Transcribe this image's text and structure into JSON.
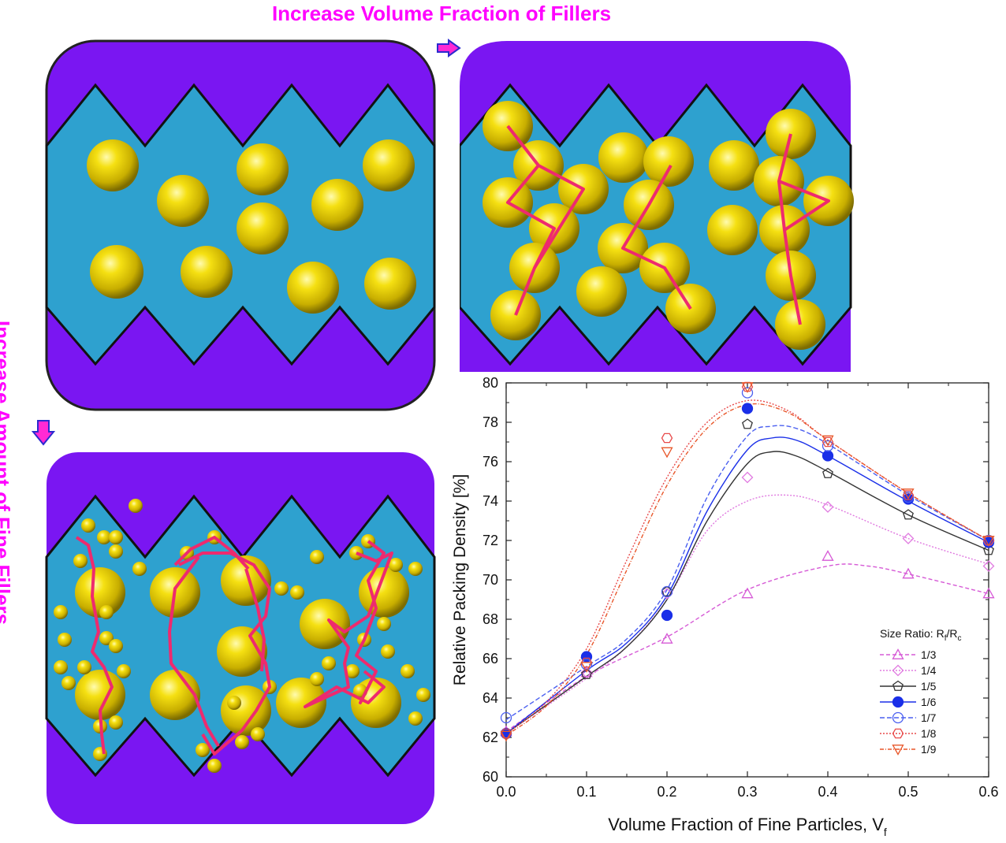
{
  "labels": {
    "top": "Increase Volume Fraction of Fillers",
    "side": "Increase Amount of Fine Fillers"
  },
  "colors": {
    "magenta": "#ff00ff",
    "frame": "#7a16f2",
    "matrix": "#2ea1cf",
    "particle": "#e6d20a",
    "path": "#ee2a6e"
  },
  "chart_data": {
    "type": "line",
    "title": "",
    "xlabel": "Volume Fraction of Fine Particles, V",
    "xlabel_sub": "f",
    "ylabel": "Relative Packing Density [%]",
    "xlim": [
      0.0,
      0.6
    ],
    "ylim": [
      60,
      80
    ],
    "xticks": [
      0.0,
      0.1,
      0.2,
      0.3,
      0.4,
      0.5,
      0.6
    ],
    "xtick_labels": [
      "0.0",
      "0.1",
      "0.2",
      "0.3",
      "0.4",
      "0.5",
      "0.6"
    ],
    "yticks": [
      60,
      62,
      64,
      66,
      68,
      70,
      72,
      74,
      76,
      78,
      80
    ],
    "ytick_labels": [
      "60",
      "62",
      "64",
      "66",
      "68",
      "70",
      "72",
      "74",
      "76",
      "78",
      "80"
    ],
    "legend_title": "Size Ratio: R",
    "legend_title_sub1": "f",
    "legend_title_mid": "/R",
    "legend_title_sub2": "c",
    "legend_position": "bottom-right",
    "x": [
      0.0,
      0.1,
      0.2,
      0.3,
      0.4,
      0.5,
      0.6
    ],
    "series": [
      {
        "name": "1/3",
        "values": [
          62.3,
          65.3,
          67.0,
          69.3,
          71.2,
          70.3,
          69.3
        ],
        "color": "#d65ad6",
        "marker": "triangle-up",
        "filled": false,
        "dash": "5,3",
        "fit": [
          [
            0.0,
            62.3
          ],
          [
            0.1,
            65.1
          ],
          [
            0.2,
            67.1
          ],
          [
            0.3,
            69.5
          ],
          [
            0.4,
            70.7
          ],
          [
            0.45,
            70.7
          ],
          [
            0.5,
            70.3
          ],
          [
            0.6,
            69.3
          ]
        ]
      },
      {
        "name": "1/4",
        "values": [
          62.2,
          65.3,
          69.3,
          75.2,
          73.7,
          72.1,
          70.7
        ],
        "color": "#e07ae0",
        "marker": "diamond",
        "filled": false,
        "dash": "2,2",
        "fit": [
          [
            0.0,
            62.2
          ],
          [
            0.1,
            65.0
          ],
          [
            0.15,
            66.6
          ],
          [
            0.2,
            69.0
          ],
          [
            0.25,
            72.5
          ],
          [
            0.3,
            74.0
          ],
          [
            0.35,
            74.3
          ],
          [
            0.4,
            73.8
          ],
          [
            0.5,
            72.1
          ],
          [
            0.6,
            70.8
          ]
        ]
      },
      {
        "name": "1/5",
        "values": [
          62.2,
          65.2,
          69.4,
          77.9,
          75.4,
          73.3,
          71.5
        ],
        "color": "#333333",
        "marker": "pentagon",
        "filled": false,
        "dash": "",
        "fit": [
          [
            0.0,
            62.2
          ],
          [
            0.1,
            65.1
          ],
          [
            0.15,
            66.6
          ],
          [
            0.2,
            69.0
          ],
          [
            0.25,
            73.0
          ],
          [
            0.3,
            75.9
          ],
          [
            0.33,
            76.5
          ],
          [
            0.36,
            76.3
          ],
          [
            0.4,
            75.5
          ],
          [
            0.5,
            73.3
          ],
          [
            0.6,
            71.5
          ]
        ]
      },
      {
        "name": "1/6",
        "values": [
          62.2,
          66.1,
          68.2,
          78.7,
          76.3,
          74.1,
          71.9
        ],
        "color": "#1a2fe8",
        "marker": "circle",
        "filled": true,
        "dash": "",
        "fit": [
          [
            0.0,
            62.2
          ],
          [
            0.1,
            65.4
          ],
          [
            0.15,
            66.8
          ],
          [
            0.2,
            69.2
          ],
          [
            0.25,
            73.5
          ],
          [
            0.3,
            76.6
          ],
          [
            0.33,
            77.2
          ],
          [
            0.36,
            77.1
          ],
          [
            0.4,
            76.3
          ],
          [
            0.5,
            74.0
          ],
          [
            0.6,
            71.9
          ]
        ]
      },
      {
        "name": "1/7",
        "values": [
          63.0,
          65.7,
          69.4,
          79.5,
          76.8,
          74.2,
          72.0
        ],
        "color": "#4a5ff0",
        "marker": "circle",
        "filled": false,
        "dash": "6,3",
        "fit": [
          [
            0.0,
            62.9
          ],
          [
            0.1,
            65.6
          ],
          [
            0.15,
            67.0
          ],
          [
            0.2,
            69.5
          ],
          [
            0.25,
            74.2
          ],
          [
            0.3,
            77.3
          ],
          [
            0.33,
            77.8
          ],
          [
            0.36,
            77.7
          ],
          [
            0.4,
            76.9
          ],
          [
            0.5,
            74.3
          ],
          [
            0.6,
            72.0
          ]
        ]
      },
      {
        "name": "1/8",
        "values": [
          62.2,
          65.8,
          77.2,
          79.8,
          77.0,
          74.3,
          72.0
        ],
        "color": "#e84a4a",
        "marker": "hexagon",
        "filled": false,
        "dash": "2,2",
        "fit": [
          [
            0.0,
            62.2
          ],
          [
            0.05,
            63.8
          ],
          [
            0.1,
            66.5
          ],
          [
            0.15,
            71.0
          ],
          [
            0.2,
            75.2
          ],
          [
            0.25,
            78.0
          ],
          [
            0.3,
            79.1
          ],
          [
            0.35,
            78.6
          ],
          [
            0.4,
            77.1
          ],
          [
            0.5,
            74.4
          ],
          [
            0.6,
            72.0
          ]
        ]
      },
      {
        "name": "1/9",
        "values": [
          62.1,
          65.6,
          76.5,
          79.8,
          77.1,
          74.4,
          72.0
        ],
        "color": "#e8572a",
        "marker": "triangle-down",
        "filled": false,
        "dash": "5,2,1,2",
        "fit": [
          [
            0.0,
            62.1
          ],
          [
            0.05,
            63.6
          ],
          [
            0.1,
            66.2
          ],
          [
            0.15,
            70.5
          ],
          [
            0.2,
            74.8
          ],
          [
            0.25,
            77.7
          ],
          [
            0.3,
            78.9
          ],
          [
            0.35,
            78.5
          ],
          [
            0.4,
            77.1
          ],
          [
            0.5,
            74.4
          ],
          [
            0.6,
            72.0
          ]
        ]
      }
    ]
  }
}
